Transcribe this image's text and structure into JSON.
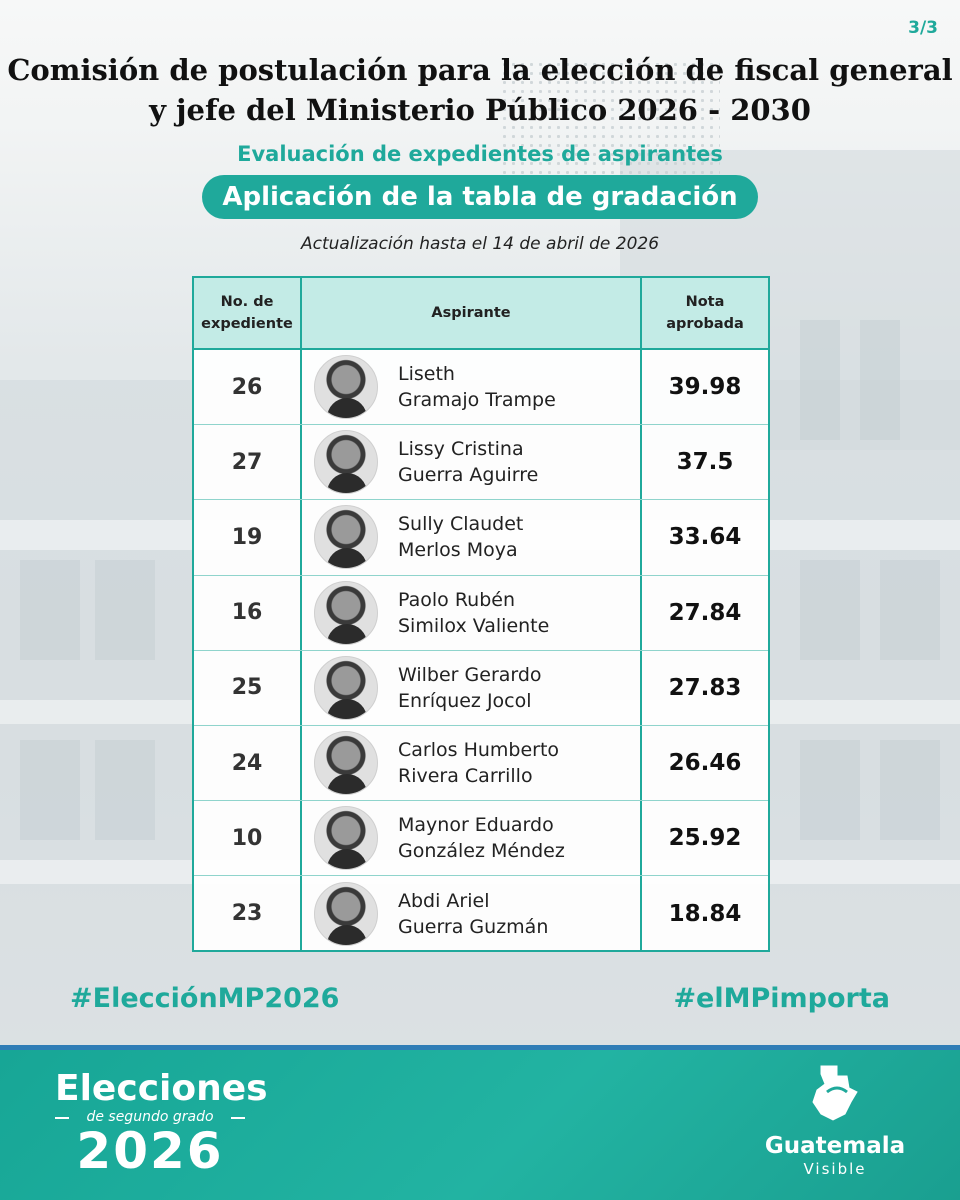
{
  "page_indicator": "3/3",
  "header": {
    "title_line1": "Comisión de postulación para la elección de fiscal general",
    "title_line2": "y jefe del Ministerio Público 2026 - 2030",
    "subtitle": "Evaluación de expedientes de aspirantes",
    "pill": "Aplicación de la tabla de gradación",
    "update": "Actualización hasta el 14 de abril de 2026"
  },
  "table": {
    "headers": {
      "expediente_1": "No. de",
      "expediente_2": "expediente",
      "aspirante": "Aspirante",
      "nota_1": "Nota",
      "nota_2": "aprobada"
    },
    "rows": [
      {
        "expediente": "26",
        "name1": "Liseth",
        "name2": "Gramajo Trampe",
        "nota": "39.98"
      },
      {
        "expediente": "27",
        "name1": "Lissy Cristina",
        "name2": "Guerra Aguirre",
        "nota": "37.5"
      },
      {
        "expediente": "19",
        "name1": "Sully Claudet",
        "name2": "Merlos Moya",
        "nota": "33.64"
      },
      {
        "expediente": "16",
        "name1": "Paolo Rubén",
        "name2": "Similox Valiente",
        "nota": "27.84"
      },
      {
        "expediente": "25",
        "name1": "Wilber Gerardo",
        "name2": "Enríquez Jocol",
        "nota": "27.83"
      },
      {
        "expediente": "24",
        "name1": "Carlos Humberto",
        "name2": "Rivera Carrillo",
        "nota": "26.46"
      },
      {
        "expediente": "10",
        "name1": "Maynor Eduardo",
        "name2": "González Méndez",
        "nota": "25.92"
      },
      {
        "expediente": "23",
        "name1": "Abdi Ariel",
        "name2": "Guerra Guzmán",
        "nota": "18.84"
      }
    ]
  },
  "hashtags": {
    "left": "#ElecciónMP2026",
    "right": "#elMPimporta"
  },
  "footer": {
    "elecciones": "Elecciones",
    "segundo_grado": "de segundo grado",
    "year": "2026",
    "brand_word": "Guatemala",
    "brand_sub": "Visible"
  },
  "colors": {
    "accent": "#1fa99b",
    "header_fill": "#c3ebe6",
    "footer_stripe": "#2f7db6"
  },
  "icons": {
    "avatar": "person-photo",
    "brand_logo": "guatemala-map-icon"
  }
}
